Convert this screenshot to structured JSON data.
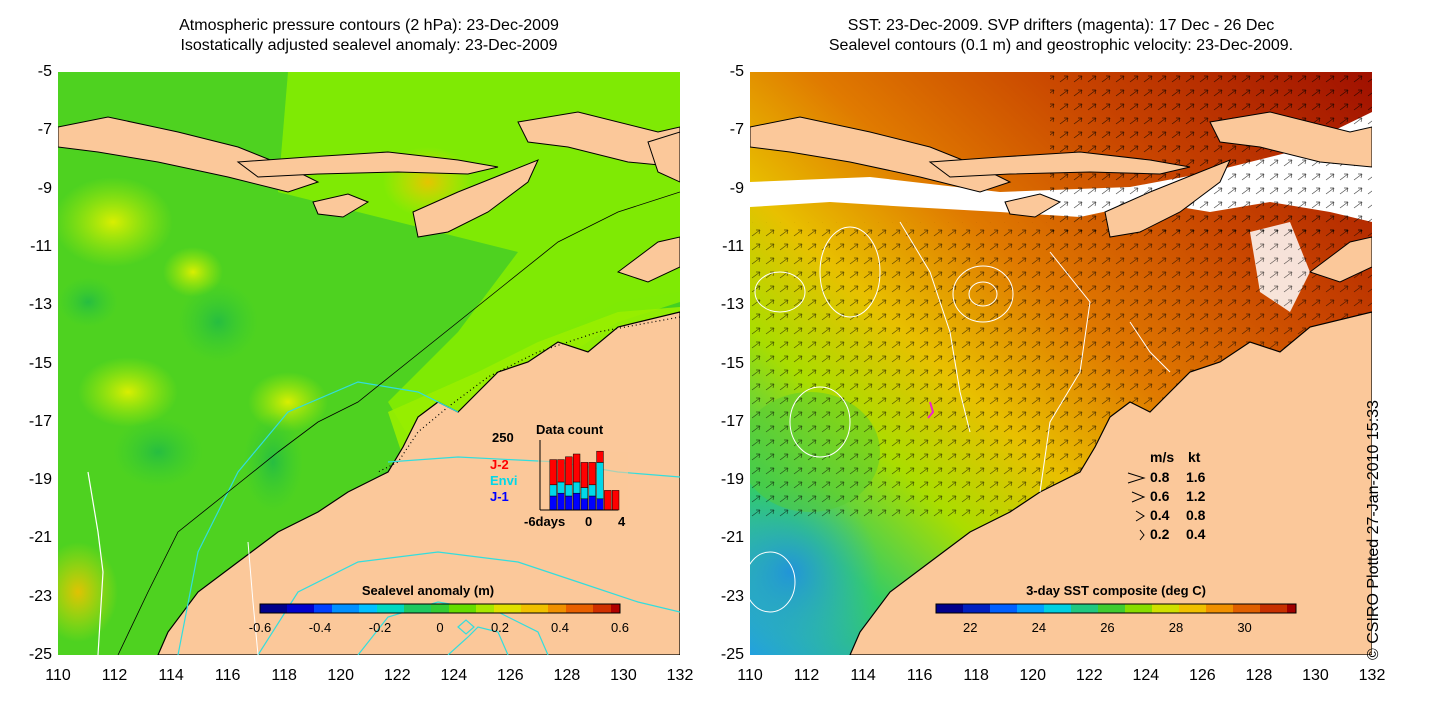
{
  "left_map": {
    "title_line1": "Atmospheric pressure contours (2 hPa): 23-Dec-2009",
    "title_line2": "Isostatically adjusted sealevel anomaly: 23-Dec-2009",
    "colorbar": {
      "label": "Sealevel anomaly (m)",
      "min": -0.6,
      "max": 0.6,
      "ticks": [
        "-0.6",
        "-0.4",
        "-0.2",
        "0",
        "0.2",
        "0.4",
        "0.6"
      ]
    },
    "inset": {
      "title": "Data count",
      "ymax_label": "250",
      "legend": [
        {
          "name": "J-2",
          "color": "#ff0000"
        },
        {
          "name": "Envi",
          "color": "#00d8e8"
        },
        {
          "name": "J-1",
          "color": "#0000ff"
        }
      ],
      "x_labels": [
        "-6days",
        "0",
        "4"
      ],
      "bars": [
        {
          "day": -6,
          "j1": 0,
          "envi": 0,
          "j2": 0
        },
        {
          "day": -5,
          "j1": 50,
          "envi": 40,
          "j2": 90
        },
        {
          "day": -4,
          "j1": 60,
          "envi": 40,
          "j2": 80
        },
        {
          "day": -3,
          "j1": 50,
          "envi": 40,
          "j2": 100
        },
        {
          "day": -2,
          "j1": 60,
          "envi": 40,
          "j2": 100
        },
        {
          "day": -1,
          "j1": 40,
          "envi": 40,
          "j2": 90
        },
        {
          "day": 0,
          "j1": 50,
          "envi": 40,
          "j2": 80
        },
        {
          "day": 1,
          "j1": 40,
          "envi": 130,
          "j2": 40
        },
        {
          "day": 2,
          "j1": 0,
          "envi": 0,
          "j2": 70
        },
        {
          "day": 3,
          "j1": 0,
          "envi": 0,
          "j2": 70
        }
      ]
    }
  },
  "right_map": {
    "title_line1": "SST: 23-Dec-2009. SVP drifters (magenta): 17 Dec - 26 Dec",
    "title_line2": "Sealevel contours (0.1 m) and geostrophic velocity: 23-Dec-2009.",
    "colorbar": {
      "label": "3-day SST composite (deg C)",
      "min": 21,
      "max": 31.5,
      "ticks": [
        "22",
        "24",
        "26",
        "28",
        "30"
      ]
    },
    "speed_legend": {
      "header_ms": "m/s",
      "header_kt": "kt",
      "rows": [
        {
          "ms": "0.8",
          "kt": "1.6"
        },
        {
          "ms": "0.6",
          "kt": "1.2"
        },
        {
          "ms": "0.4",
          "kt": "0.8"
        },
        {
          "ms": "0.2",
          "kt": "0.4"
        }
      ]
    }
  },
  "axes": {
    "y_labels": [
      "-5",
      "-7",
      "-9",
      "-11",
      "-13",
      "-15",
      "-17",
      "-19",
      "-21",
      "-23",
      "-25"
    ],
    "x_labels": [
      "110",
      "112",
      "114",
      "116",
      "118",
      "120",
      "122",
      "124",
      "126",
      "128",
      "130",
      "132"
    ],
    "lat_range": [
      -25,
      -5
    ],
    "lon_range": [
      110,
      132
    ]
  },
  "copyright": "© CSIRO Plotted 27-Jan-2010 15:33",
  "colors": {
    "land": "#fbc89a",
    "sla_green": "#33cc33",
    "sla_lime": "#88ee00",
    "sst_warm": "#cc4400",
    "contour_cyan": "#33dddd"
  }
}
